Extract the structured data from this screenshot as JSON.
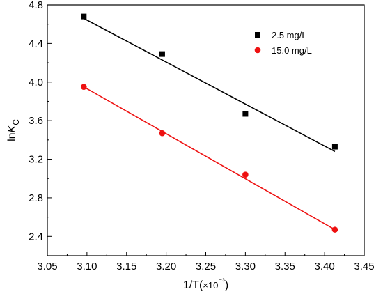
{
  "chart_data": {
    "type": "scatter",
    "title": "",
    "xlabel": "1/T(×10⁻³)",
    "ylabel": "lnK_C",
    "xlim": [
      3.05,
      3.45
    ],
    "ylim": [
      2.2,
      4.8
    ],
    "xticks": [
      3.05,
      3.1,
      3.15,
      3.2,
      3.25,
      3.3,
      3.35,
      3.4,
      3.45
    ],
    "xtick_labels": [
      "3.05",
      "3.10",
      "3.15",
      "3.20",
      "3.25",
      "3.30",
      "3.35",
      "3.40",
      "3.45"
    ],
    "yticks": [
      2.4,
      2.8,
      3.2,
      3.6,
      4.0,
      4.4,
      4.8
    ],
    "ytick_labels": [
      "2.4",
      "2.8",
      "3.2",
      "3.6",
      "4.0",
      "4.4",
      "4.8"
    ],
    "grid": false,
    "legend_position": "top-right",
    "series": [
      {
        "name": "2.5 mg/L",
        "marker": "square",
        "color": "#000000",
        "x": [
          3.096,
          3.195,
          3.3,
          3.413
        ],
        "y": [
          4.68,
          4.29,
          3.67,
          3.33
        ],
        "fit_line": {
          "x": [
            3.096,
            3.413
          ],
          "y": [
            4.66,
            3.28
          ]
        }
      },
      {
        "name": "15.0 mg/L",
        "marker": "circle",
        "color": "#ee1111",
        "x": [
          3.096,
          3.195,
          3.3,
          3.413
        ],
        "y": [
          3.95,
          3.47,
          3.04,
          2.47
        ],
        "fit_line": {
          "x": [
            3.096,
            3.413
          ],
          "y": [
            3.95,
            2.47
          ]
        }
      }
    ]
  }
}
